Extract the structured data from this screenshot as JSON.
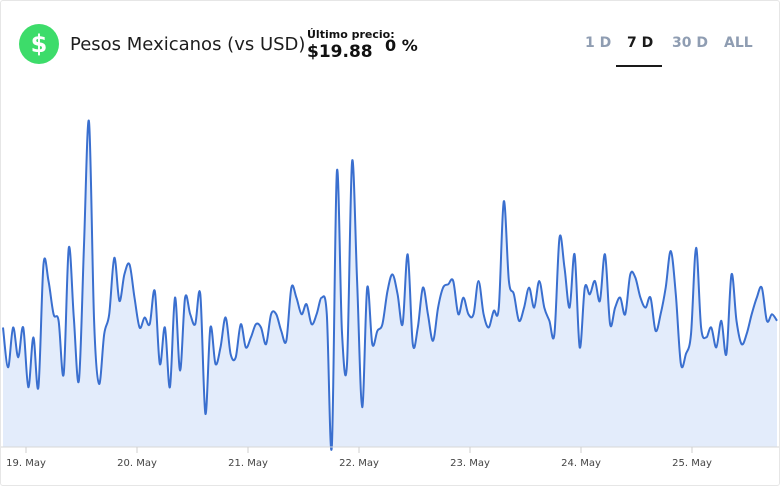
{
  "asset": {
    "icon": "dollar-icon",
    "icon_glyph": "$",
    "name": "Pesos Mexicanos (vs USD)",
    "price_label": "Último precio:",
    "price": "$19.88",
    "change": "0 %",
    "accent_color": "#3ddc6a"
  },
  "tabs": [
    {
      "label": "1 D",
      "active": false
    },
    {
      "label": "7 D",
      "active": true
    },
    {
      "label": "30 D",
      "active": false
    },
    {
      "label": "ALL",
      "active": false
    }
  ],
  "chart_data": {
    "type": "area",
    "title": "",
    "xlabel": "",
    "ylabel": "",
    "ylim": [
      0,
      100
    ],
    "grid": false,
    "line_color": "#3a6fcf",
    "fill_color": "#e3ecfb",
    "x_ticks": [
      "19. May",
      "20. May",
      "21. May",
      "22. May",
      "23. May",
      "24. May",
      "25. May"
    ],
    "series": [
      {
        "values": [
          36,
          24,
          36,
          27,
          36,
          18,
          33,
          18,
          55,
          50,
          40,
          38,
          22,
          60,
          39,
          20,
          60,
          98,
          38,
          19,
          34,
          40,
          57,
          44,
          52,
          55,
          45,
          36,
          39,
          37,
          47,
          25,
          36,
          18,
          45,
          23,
          45,
          40,
          37,
          46,
          10,
          36,
          25,
          30,
          39,
          28,
          27,
          37,
          30,
          33,
          37,
          36,
          31,
          40,
          40,
          35,
          32,
          48,
          45,
          40,
          43,
          37,
          40,
          45,
          40,
          0,
          83,
          35,
          25,
          86,
          50,
          12,
          48,
          31,
          35,
          37,
          47,
          52,
          46,
          37,
          58,
          31,
          36,
          48,
          40,
          32,
          42,
          48,
          49,
          50,
          40,
          45,
          40,
          40,
          50,
          40,
          36,
          41,
          42,
          74,
          50,
          46,
          38,
          42,
          48,
          42,
          50,
          42,
          38,
          34,
          63,
          54,
          42,
          58,
          30,
          48,
          46,
          50,
          44,
          58,
          37,
          42,
          45,
          40,
          52,
          51,
          45,
          42,
          45,
          35,
          40,
          48,
          59,
          46,
          25,
          28,
          34,
          60,
          36,
          33,
          36,
          30,
          38,
          28,
          52,
          38,
          31,
          34,
          40,
          45,
          48,
          38,
          40,
          38
        ]
      }
    ]
  }
}
